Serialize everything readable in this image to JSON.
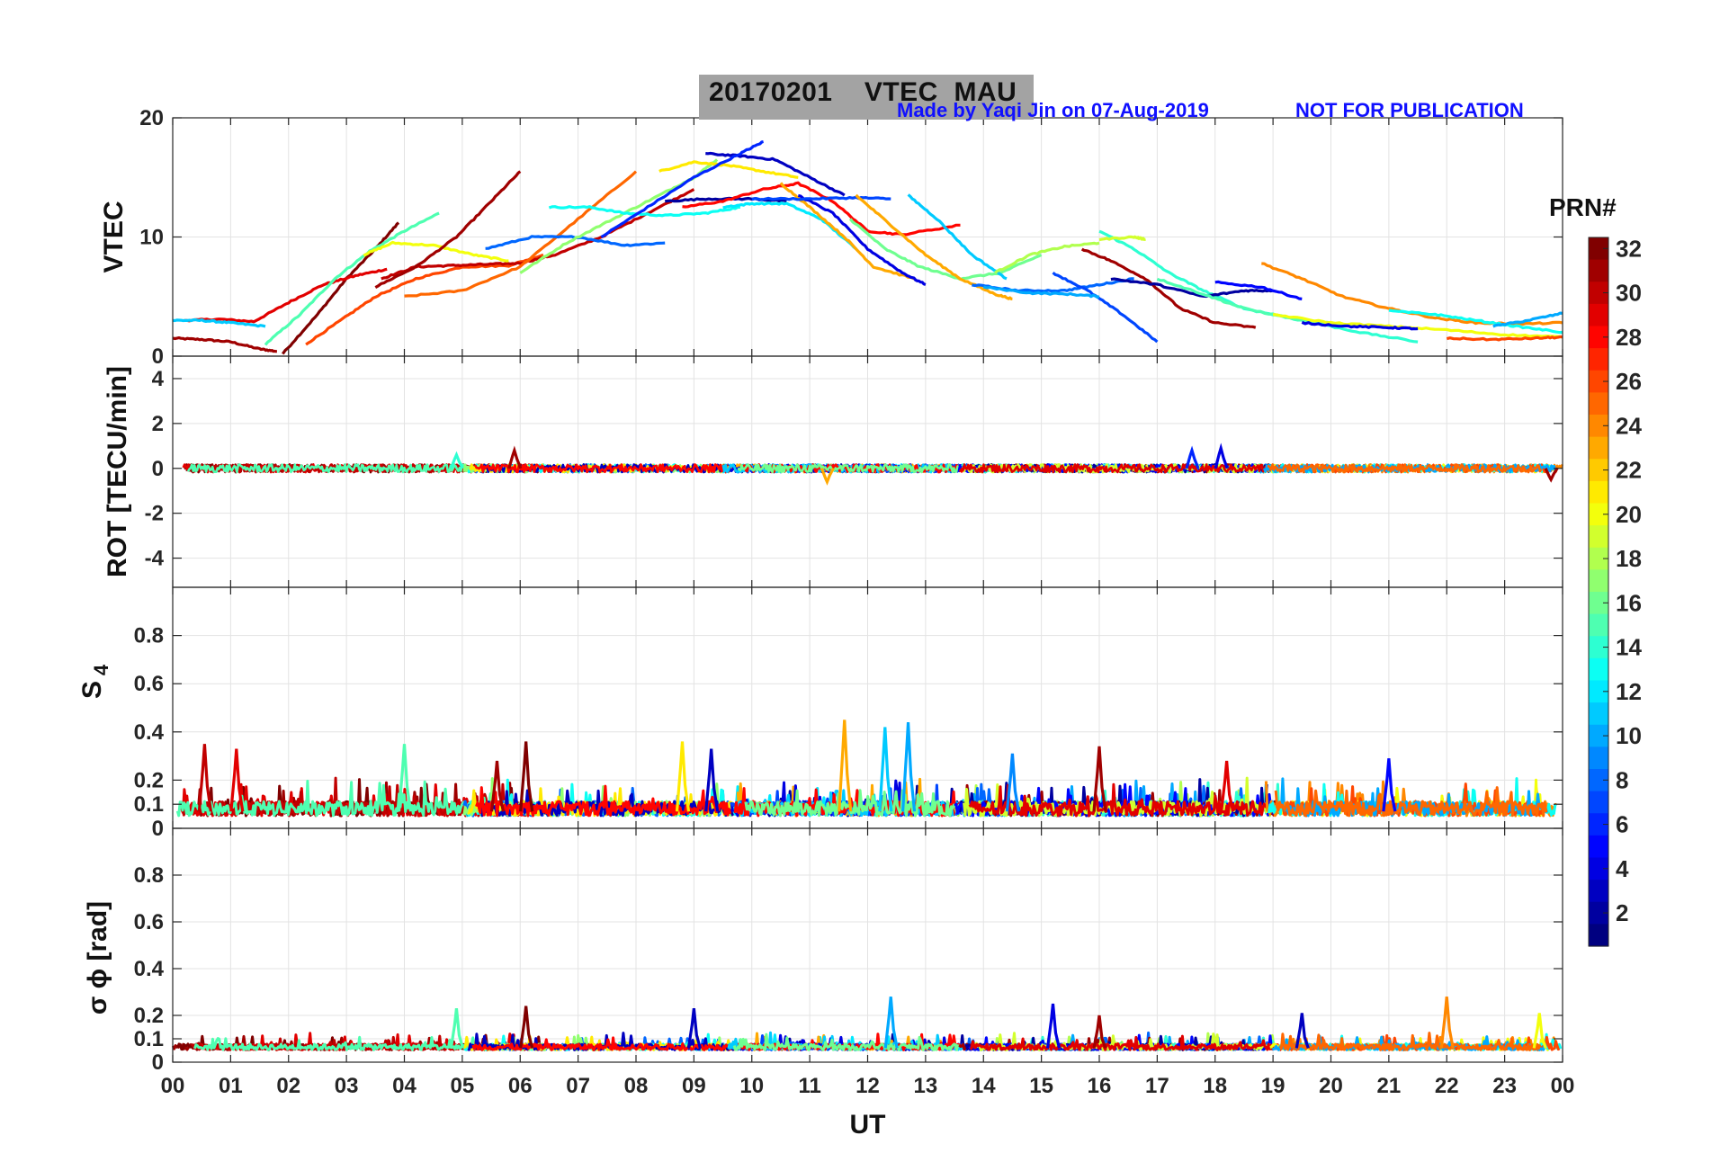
{
  "header": {
    "title": "20170201    VTEC  MAU",
    "made_by": "Made by Yaqi Jin on 07-Aug-2019",
    "notice": "NOT FOR PUBLICATION"
  },
  "colors": {
    "title_box": "#a3a3a3",
    "annotation": "#1010ff",
    "axis": "#262626",
    "grid": "#e3e3e3"
  },
  "chart_data": [
    {
      "type": "line",
      "panel": "vtec",
      "ylabel": "VTEC",
      "ylim": [
        0,
        20
      ],
      "yticks": [
        0,
        10,
        20
      ],
      "xlim": [
        0,
        24
      ],
      "series": [
        {
          "name": "PRN 31",
          "prn": 31,
          "x": [
            0,
            0.5,
            1,
            1.5,
            1.8
          ],
          "y": [
            1.5,
            1.4,
            1.2,
            0.6,
            0.4
          ]
        },
        {
          "name": "PRN 32",
          "prn": 32,
          "x": [
            1.9,
            2.5,
            3.0,
            3.5,
            3.9
          ],
          "y": [
            0.2,
            3.5,
            6.5,
            9.0,
            11.2
          ]
        },
        {
          "name": "PRN 29",
          "prn": 29,
          "x": [
            0.2,
            0.8,
            1.4,
            2.0,
            2.6,
            3.2,
            3.7
          ],
          "y": [
            3.0,
            3.1,
            2.9,
            4.5,
            6.0,
            6.8,
            7.3
          ]
        },
        {
          "name": "PRN 11",
          "prn": 11,
          "x": [
            0,
            0.5,
            1.0,
            1.6
          ],
          "y": [
            3.0,
            3.0,
            2.8,
            2.5
          ]
        },
        {
          "name": "PRN 15",
          "prn": 15,
          "x": [
            1.6,
            2.2,
            2.8,
            3.4,
            4.0,
            4.6
          ],
          "y": [
            1.0,
            3.5,
            6.5,
            8.8,
            10.5,
            12.0
          ]
        },
        {
          "name": "PRN 26",
          "prn": 26,
          "x": [
            2.3,
            2.9,
            3.5,
            4.2,
            5.0,
            5.8,
            6.4
          ],
          "y": [
            1.0,
            3.0,
            5.0,
            6.5,
            7.5,
            7.6,
            8.5
          ]
        },
        {
          "name": "PRN 30",
          "prn": 30,
          "x": [
            3.6,
            4.2,
            4.8,
            5.4,
            6.0,
            6.6,
            7.4,
            8.2,
            9.0
          ],
          "y": [
            6.5,
            7.5,
            7.6,
            7.7,
            7.8,
            8.5,
            10.0,
            12.0,
            14.0
          ]
        },
        {
          "name": "PRN 20",
          "prn": 20,
          "x": [
            3.3,
            3.8,
            4.5,
            5.2,
            5.8
          ],
          "y": [
            8.5,
            9.5,
            9.3,
            8.5,
            8.0
          ]
        },
        {
          "name": "PRN 31",
          "prn": 31,
          "x": [
            3.5,
            4.2,
            4.9,
            5.5,
            6.0
          ],
          "y": [
            5.8,
            7.5,
            10.0,
            13.0,
            15.5
          ]
        },
        {
          "name": "PRN 25",
          "prn": 25,
          "x": [
            4.0,
            5.0,
            6.0,
            7.0,
            8.0
          ],
          "y": [
            5.0,
            5.5,
            7.5,
            11.5,
            15.5
          ]
        },
        {
          "name": "PRN 8",
          "prn": 8,
          "x": [
            5.4,
            6.2,
            7.0,
            7.8,
            8.5
          ],
          "y": [
            9.0,
            10.0,
            10.0,
            9.3,
            9.5
          ]
        },
        {
          "name": "PRN 17",
          "prn": 17,
          "x": [
            6.0,
            6.8,
            7.6,
            8.4,
            9.0,
            9.4
          ],
          "y": [
            7.0,
            9.5,
            11.5,
            13.5,
            15.0,
            16.5
          ]
        },
        {
          "name": "PRN 13",
          "prn": 13,
          "x": [
            6.5,
            7.2,
            7.8,
            8.5,
            9.2,
            9.8
          ],
          "y": [
            12.5,
            12.5,
            12.0,
            11.8,
            12.0,
            12.5
          ]
        },
        {
          "name": "PRN 21",
          "prn": 21,
          "x": [
            8.4,
            9.0,
            9.6,
            10.2,
            10.8
          ],
          "y": [
            15.5,
            16.3,
            16.0,
            15.5,
            15.0
          ]
        },
        {
          "name": "PRN 3",
          "prn": 3,
          "x": [
            9.2,
            9.8,
            10.4,
            11.0,
            11.6
          ],
          "y": [
            17.0,
            16.8,
            16.5,
            15.0,
            13.5
          ]
        },
        {
          "name": "PRN 6",
          "prn": 6,
          "x": [
            7.4,
            8.2,
            9.0,
            9.8,
            10.2
          ],
          "y": [
            10.0,
            12.5,
            15.0,
            17.0,
            18.0
          ]
        },
        {
          "name": "PRN 2",
          "prn": 2,
          "x": [
            8.5,
            9.2,
            10.0,
            10.6
          ],
          "y": [
            13.0,
            13.2,
            13.2,
            13.0
          ]
        },
        {
          "name": "PRN 28",
          "prn": 28,
          "x": [
            8.8,
            9.5,
            10.2,
            10.8,
            11.4,
            12.0,
            12.6,
            13.6
          ],
          "y": [
            12.5,
            13.0,
            14.0,
            14.5,
            13.0,
            10.5,
            10.2,
            11.0
          ]
        },
        {
          "name": "PRN 12",
          "prn": 12,
          "x": [
            9.5,
            10.0,
            10.6,
            11.2,
            11.8
          ],
          "y": [
            12.5,
            12.8,
            12.8,
            11.5,
            9.0
          ]
        },
        {
          "name": "PRN 23",
          "prn": 23,
          "x": [
            10.5,
            11.0,
            11.6,
            12.1,
            12.8
          ],
          "y": [
            14.5,
            12.5,
            10.0,
            7.5,
            6.5
          ]
        },
        {
          "name": "PRN 4",
          "prn": 4,
          "x": [
            10.8,
            11.4,
            12.0,
            12.6,
            13.0
          ],
          "y": [
            13.5,
            12.0,
            9.0,
            7.0,
            6.0
          ]
        },
        {
          "name": "PRN 7",
          "prn": 7,
          "x": [
            10.0,
            11.0,
            11.8,
            12.4
          ],
          "y": [
            13.2,
            13.2,
            13.3,
            13.2
          ]
        },
        {
          "name": "PRN 16",
          "prn": 16,
          "x": [
            11.7,
            12.3,
            12.9,
            13.6,
            14.3,
            15.0
          ],
          "y": [
            11.5,
            9.0,
            7.5,
            6.5,
            7.0,
            8.5
          ]
        },
        {
          "name": "PRN 23",
          "prn": 23,
          "x": [
            11.8,
            12.4,
            13.0,
            13.6,
            14.2,
            14.5
          ],
          "y": [
            13.5,
            11.0,
            8.5,
            6.5,
            5.2,
            4.8
          ]
        },
        {
          "name": "PRN 11",
          "prn": 11,
          "x": [
            12.7,
            13.2,
            13.8,
            14.4
          ],
          "y": [
            13.5,
            11.5,
            8.5,
            6.5
          ]
        },
        {
          "name": "PRN 18",
          "prn": 18,
          "x": [
            14.2,
            14.8,
            15.4,
            16.0
          ],
          "y": [
            7.0,
            8.5,
            9.2,
            9.5
          ]
        },
        {
          "name": "PRN 8",
          "prn": 8,
          "x": [
            13.8,
            14.6,
            15.4,
            16.0,
            16.6
          ],
          "y": [
            6.0,
            5.5,
            5.5,
            6.0,
            6.5
          ]
        },
        {
          "name": "PRN 7",
          "prn": 7,
          "x": [
            15.2,
            15.8,
            16.4,
            17.0
          ],
          "y": [
            7.0,
            5.5,
            3.5,
            1.2
          ]
        },
        {
          "name": "PRN 10",
          "prn": 10,
          "x": [
            14.0,
            14.8,
            15.5,
            16.0
          ],
          "y": [
            5.8,
            5.3,
            5.2,
            5.0
          ]
        },
        {
          "name": "PRN 31",
          "prn": 31,
          "x": [
            15.7,
            16.2,
            16.8,
            17.4,
            18.0,
            18.7
          ],
          "y": [
            9.0,
            8.0,
            6.5,
            4.0,
            2.8,
            2.4
          ]
        },
        {
          "name": "PRN 14",
          "prn": 14,
          "x": [
            16.0,
            16.6,
            17.2,
            17.8,
            18.5,
            19.5,
            20.5,
            21.5
          ],
          "y": [
            10.5,
            9.0,
            7.0,
            5.5,
            4.0,
            3.0,
            2.0,
            1.2
          ]
        },
        {
          "name": "PRN 19",
          "prn": 19,
          "x": [
            16.0,
            16.6,
            16.8
          ],
          "y": [
            9.8,
            10.0,
            9.8
          ]
        },
        {
          "name": "PRN 2",
          "prn": 2,
          "x": [
            16.2,
            17.0,
            17.8,
            18.5,
            19.0
          ],
          "y": [
            6.5,
            6.0,
            5.0,
            5.5,
            5.5
          ]
        },
        {
          "name": "PRN 15",
          "prn": 15,
          "x": [
            17.0,
            17.8,
            18.5,
            19.5,
            20.5
          ],
          "y": [
            6.5,
            5.2,
            4.0,
            3.0,
            2.5
          ]
        },
        {
          "name": "PRN 5",
          "prn": 5,
          "x": [
            18.0,
            18.8,
            19.5
          ],
          "y": [
            6.2,
            5.8,
            4.8
          ]
        },
        {
          "name": "PRN 24",
          "prn": 24,
          "x": [
            18.8,
            19.5,
            20.2,
            21.0,
            21.8,
            22.5,
            23.2,
            24.0
          ],
          "y": [
            7.8,
            6.5,
            5.0,
            4.0,
            3.2,
            2.8,
            2.7,
            2.8
          ]
        },
        {
          "name": "PRN 20",
          "prn": 20,
          "x": [
            19.0,
            20.0,
            21.0,
            22.0,
            23.0,
            24.0
          ],
          "y": [
            3.5,
            2.8,
            2.5,
            2.2,
            1.8,
            1.6
          ]
        },
        {
          "name": "PRN 4",
          "prn": 4,
          "x": [
            19.5,
            20.3,
            21.0,
            21.5
          ],
          "y": [
            2.8,
            2.5,
            2.4,
            2.3
          ]
        },
        {
          "name": "PRN 13",
          "prn": 13,
          "x": [
            21.0,
            21.8,
            22.5,
            23.2,
            24.0
          ],
          "y": [
            3.8,
            3.5,
            3.0,
            2.5,
            2.0
          ]
        },
        {
          "name": "PRN 10",
          "prn": 10,
          "x": [
            22.8,
            23.4,
            24.0
          ],
          "y": [
            2.5,
            3.0,
            3.6
          ]
        },
        {
          "name": "PRN 26",
          "prn": 26,
          "x": [
            22.0,
            22.8,
            23.5,
            24.0
          ],
          "y": [
            1.5,
            1.4,
            1.5,
            1.6
          ]
        }
      ]
    },
    {
      "type": "line",
      "panel": "rot",
      "ylabel": "ROT [TECU/min]",
      "ylim": [
        -5.3,
        5
      ],
      "yticks": [
        -4,
        -2,
        0,
        2,
        4
      ],
      "xlim": [
        0,
        24
      ],
      "baseline": 0,
      "noise_amplitude": 0.35,
      "spikes": [
        {
          "x": 5.9,
          "y": 0.8,
          "prn": 31
        },
        {
          "x": 4.9,
          "y": 0.6,
          "prn": 14
        },
        {
          "x": 17.6,
          "y": 0.8,
          "prn": 6
        },
        {
          "x": 18.1,
          "y": 0.9,
          "prn": 4
        },
        {
          "x": 11.3,
          "y": -0.6,
          "prn": 23
        },
        {
          "x": 23.8,
          "y": -0.5,
          "prn": 31
        }
      ]
    },
    {
      "type": "line",
      "panel": "s4",
      "ylabel": "S4",
      "ylim": [
        0,
        1
      ],
      "yticks": [
        0,
        0.1,
        0.2,
        0.4,
        0.6,
        0.8
      ],
      "xlim": [
        0,
        24
      ],
      "baseline": 0.07,
      "spikes": [
        {
          "x": 0.55,
          "y": 0.35,
          "prn": 30
        },
        {
          "x": 1.1,
          "y": 0.33,
          "prn": 29
        },
        {
          "x": 4.0,
          "y": 0.35,
          "prn": 15
        },
        {
          "x": 5.6,
          "y": 0.28,
          "prn": 31
        },
        {
          "x": 6.1,
          "y": 0.36,
          "prn": 32
        },
        {
          "x": 8.8,
          "y": 0.36,
          "prn": 21
        },
        {
          "x": 9.3,
          "y": 0.33,
          "prn": 3
        },
        {
          "x": 11.6,
          "y": 0.45,
          "prn": 23
        },
        {
          "x": 12.3,
          "y": 0.42,
          "prn": 11
        },
        {
          "x": 12.7,
          "y": 0.44,
          "prn": 10
        },
        {
          "x": 14.5,
          "y": 0.31,
          "prn": 9
        },
        {
          "x": 16.0,
          "y": 0.34,
          "prn": 31
        },
        {
          "x": 18.2,
          "y": 0.28,
          "prn": 29
        },
        {
          "x": 21.0,
          "y": 0.29,
          "prn": 5
        }
      ]
    },
    {
      "type": "line",
      "panel": "sigma",
      "ylabel": "σ ϕ [rad]",
      "ylim": [
        0,
        1
      ],
      "yticks": [
        0,
        0.1,
        0.2,
        0.4,
        0.6,
        0.8
      ],
      "xlim": [
        0,
        24
      ],
      "xticks": [
        "00",
        "01",
        "02",
        "03",
        "04",
        "05",
        "06",
        "07",
        "08",
        "09",
        "10",
        "11",
        "12",
        "13",
        "14",
        "15",
        "16",
        "17",
        "18",
        "19",
        "20",
        "21",
        "22",
        "23",
        "00"
      ],
      "xlabel": "UT",
      "baseline": 0.06,
      "spikes": [
        {
          "x": 4.9,
          "y": 0.23,
          "prn": 15
        },
        {
          "x": 6.1,
          "y": 0.24,
          "prn": 32
        },
        {
          "x": 9.0,
          "y": 0.23,
          "prn": 3
        },
        {
          "x": 12.4,
          "y": 0.28,
          "prn": 10
        },
        {
          "x": 15.2,
          "y": 0.25,
          "prn": 4
        },
        {
          "x": 16.0,
          "y": 0.2,
          "prn": 31
        },
        {
          "x": 19.5,
          "y": 0.21,
          "prn": 3
        },
        {
          "x": 22.0,
          "y": 0.28,
          "prn": 24
        },
        {
          "x": 23.6,
          "y": 0.21,
          "prn": 20
        }
      ]
    }
  ],
  "colorbar": {
    "label": "PRN#",
    "min": 1,
    "max": 32,
    "ticks": [
      2,
      4,
      6,
      8,
      10,
      12,
      14,
      16,
      18,
      20,
      22,
      24,
      26,
      28,
      30,
      32
    ]
  }
}
